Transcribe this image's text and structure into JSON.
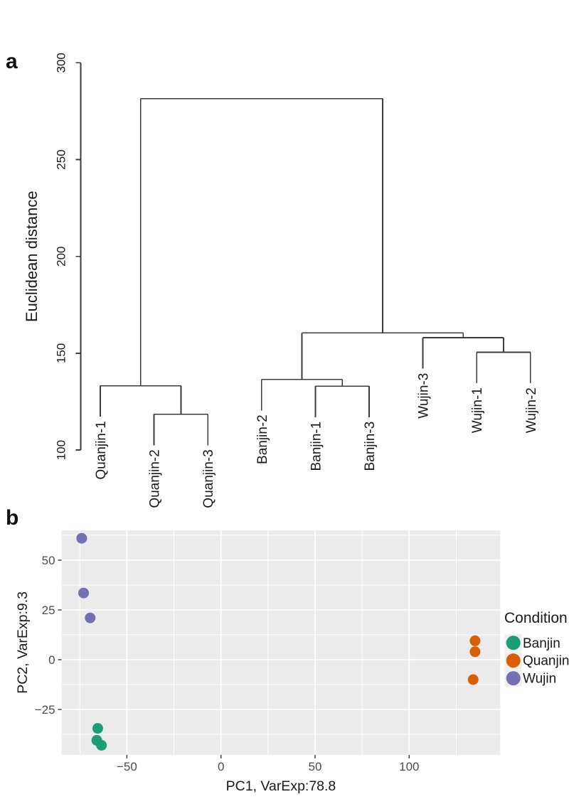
{
  "figure": {
    "panel_a_letter": "a",
    "panel_b_letter": "b"
  },
  "chart_data": [
    {
      "type": "dendrogram",
      "panel_label": "a",
      "ylabel": "Euclidean distance",
      "ylim": [
        100,
        300
      ],
      "yticks": [
        300,
        250,
        200,
        150,
        100
      ],
      "ytick_labels": [
        "300",
        "250",
        "200",
        "150",
        "100"
      ],
      "leaves": [
        "Quanjin-1",
        "Quanjin-2",
        "Quanjin-3",
        "Banjin-2",
        "Banjin-1",
        "Banjin-3",
        "Wujin-3",
        "Wujin-1",
        "Wujin-2"
      ],
      "merges": [
        {
          "id": "A",
          "children": [
            "Quanjin-2",
            "Quanjin-3"
          ],
          "height": 118.5
        },
        {
          "id": "B",
          "children": [
            "Quanjin-1",
            "A"
          ],
          "height": 133.2
        },
        {
          "id": "C",
          "children": [
            "Banjin-1",
            "Banjin-3"
          ],
          "height": 133.0
        },
        {
          "id": "D",
          "children": [
            "Banjin-2",
            "C"
          ],
          "height": 136.5
        },
        {
          "id": "E",
          "children": [
            "Wujin-1",
            "Wujin-2"
          ],
          "height": 150.5
        },
        {
          "id": "F",
          "children": [
            "Wujin-3",
            "E"
          ],
          "height": 158.0
        },
        {
          "id": "G",
          "children": [
            "D",
            "F"
          ],
          "height": 160.5
        },
        {
          "id": "root",
          "children": [
            "B",
            "G"
          ],
          "height": 281.5
        }
      ],
      "leaf_hang": 16,
      "line_color": "#3C3C3C",
      "text_color": "#1A1A1A"
    },
    {
      "type": "scatter",
      "panel_label": "b",
      "xlabel": "PC1, VarExp:78.8",
      "ylabel": "PC2, VarExp:9.3",
      "xlim": [
        -84.7,
        148.4
      ],
      "ylim": [
        -47.8,
        65
      ],
      "xticks": [
        -50,
        0,
        50,
        100
      ],
      "xtick_labels": [
        "−50",
        "0",
        "50",
        "100"
      ],
      "yticks": [
        50,
        25,
        0,
        -25
      ],
      "ytick_labels": [
        "50",
        "25",
        "0",
        "−25"
      ],
      "x_minor": [
        -75,
        -25,
        25,
        75,
        125
      ],
      "y_minor": [
        62.5,
        37.5,
        12.5,
        -12.5,
        -37.5
      ],
      "grid": true,
      "panel_bg": "#EBEBEB",
      "grid_color": "#FFFFFF",
      "tick_color": "#333333",
      "tick_label_color": "#4D4D4D",
      "text_color": "#1A1A1A",
      "legend": {
        "title": "Condition",
        "position": "right",
        "key_bg": "#EFEFEF",
        "entries": [
          {
            "name": "Banjin",
            "color": "#1B9E77"
          },
          {
            "name": "Quanjin",
            "color": "#D95F02"
          },
          {
            "name": "Wujin",
            "color": "#7570B3"
          }
        ]
      },
      "series": [
        {
          "name": "Banjin",
          "color": "#1B9E77",
          "points": [
            [
              -65.5,
              -34.5
            ],
            [
              -66,
              -40.5
            ],
            [
              -63.5,
              -43
            ]
          ]
        },
        {
          "name": "Quanjin",
          "color": "#D95F02",
          "points": [
            [
              135,
              9.5
            ],
            [
              135,
              4
            ],
            [
              134,
              -10
            ]
          ]
        },
        {
          "name": "Wujin",
          "color": "#7570B3",
          "points": [
            [
              -74,
              61
            ],
            [
              -73,
              33.5
            ],
            [
              -69.5,
              21
            ]
          ]
        }
      ]
    }
  ]
}
